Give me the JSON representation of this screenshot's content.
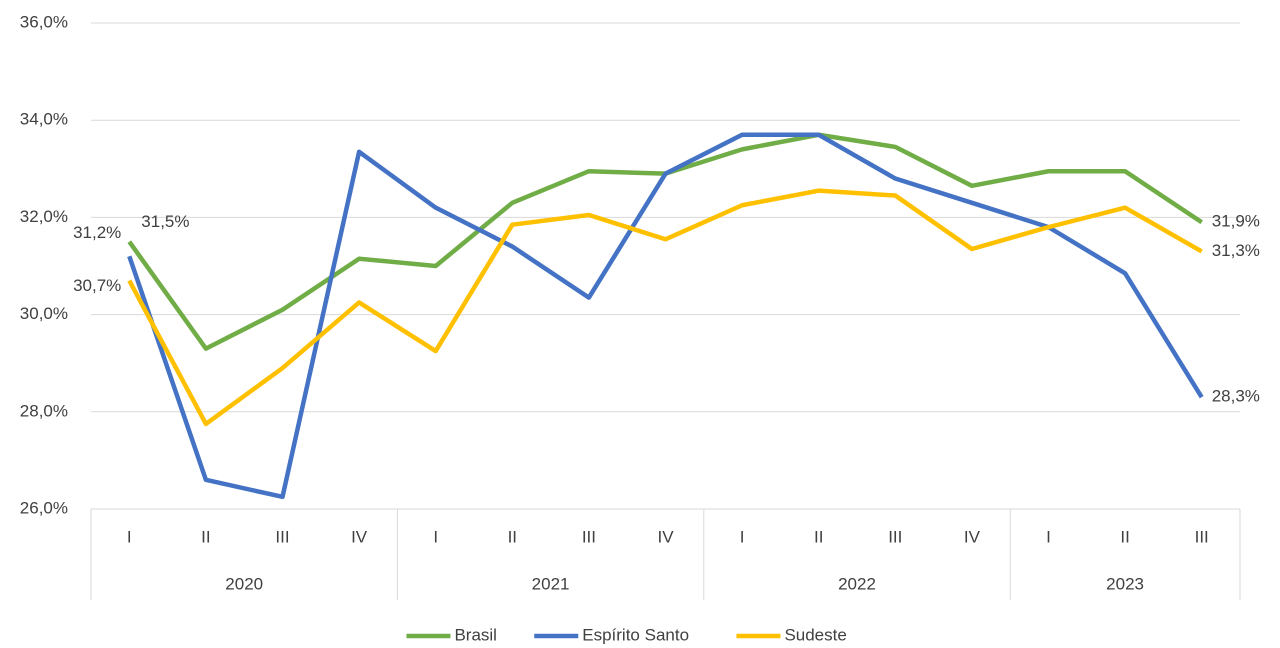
{
  "chart_data": {
    "type": "line",
    "groups": [
      {
        "name": "2020",
        "categories": [
          "I",
          "II",
          "III",
          "IV"
        ]
      },
      {
        "name": "2021",
        "categories": [
          "I",
          "II",
          "III",
          "IV"
        ]
      },
      {
        "name": "2022",
        "categories": [
          "I",
          "II",
          "III",
          "IV"
        ]
      },
      {
        "name": "2023",
        "categories": [
          "I",
          "II",
          "III"
        ]
      }
    ],
    "series": [
      {
        "name": "Brasil",
        "color": "#70ad47",
        "values": [
          31.5,
          29.3,
          30.1,
          31.15,
          31.0,
          32.3,
          32.95,
          32.9,
          33.4,
          33.7,
          33.45,
          32.65,
          32.95,
          32.95,
          31.9
        ],
        "value_labels": [
          "31,5%",
          null,
          null,
          null,
          null,
          null,
          null,
          null,
          null,
          null,
          null,
          null,
          null,
          null,
          "31,9%"
        ]
      },
      {
        "name": "Espírito Santo",
        "color": "#4472c4",
        "values": [
          31.2,
          26.6,
          26.25,
          33.35,
          32.2,
          31.4,
          30.35,
          32.9,
          33.7,
          33.7,
          32.8,
          32.3,
          31.8,
          30.85,
          28.3
        ],
        "value_labels": [
          "31,2%",
          null,
          null,
          null,
          null,
          null,
          null,
          null,
          null,
          null,
          null,
          null,
          null,
          null,
          "28,3%"
        ]
      },
      {
        "name": "Sudeste",
        "color": "#ffc000",
        "values": [
          30.7,
          27.75,
          28.9,
          30.25,
          29.25,
          31.85,
          32.05,
          31.55,
          32.25,
          32.55,
          32.45,
          31.35,
          31.8,
          32.2,
          31.3
        ],
        "value_labels": [
          "30,7%",
          null,
          null,
          null,
          null,
          null,
          null,
          null,
          null,
          null,
          null,
          null,
          null,
          null,
          "31,3%"
        ]
      }
    ],
    "ylim": [
      26,
      36
    ],
    "yticks": [
      {
        "value": 26,
        "label": "26,0%"
      },
      {
        "value": 28,
        "label": "28,0%"
      },
      {
        "value": 30,
        "label": "30,0%"
      },
      {
        "value": 32,
        "label": "32,0%"
      },
      {
        "value": 34,
        "label": "34,0%"
      },
      {
        "value": 36,
        "label": "36,0%"
      }
    ],
    "grid": true,
    "legend": "bottom"
  }
}
